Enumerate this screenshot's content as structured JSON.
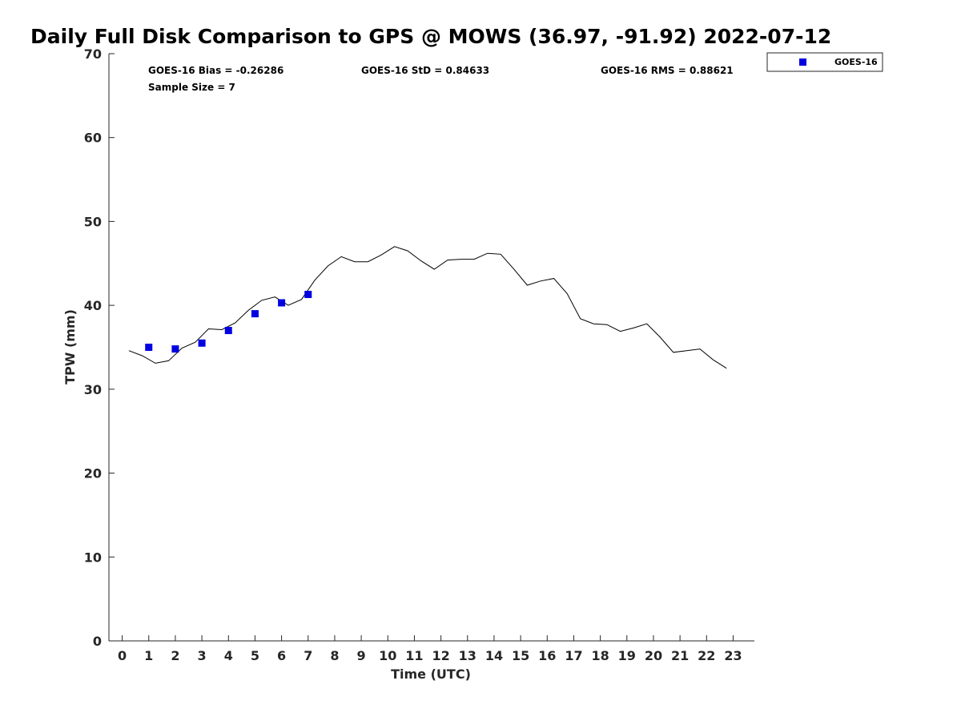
{
  "chart_data": {
    "type": "scatter",
    "title": "Daily Full Disk Comparison to GPS @ MOWS (36.97, -91.92) 2022-07-12",
    "xlabel": "Time (UTC)",
    "ylabel": "TPW (mm)",
    "xlim": [
      -0.5,
      23.8
    ],
    "ylim": [
      0,
      70
    ],
    "x_ticks": [
      "0",
      "1",
      "2",
      "3",
      "4",
      "5",
      "6",
      "7",
      "8",
      "9",
      "10",
      "11",
      "12",
      "13",
      "14",
      "15",
      "16",
      "17",
      "18",
      "19",
      "20",
      "21",
      "22",
      "23"
    ],
    "y_ticks": [
      "0",
      "10",
      "20",
      "30",
      "40",
      "50",
      "60",
      "70"
    ],
    "grid": false,
    "legend_position": "top-right, outside plot",
    "stats": {
      "bias": "GOES-16 Bias = -0.26286",
      "std": "GOES-16 StD = 0.84633",
      "rms": "GOES-16 RMS = 0.88621",
      "sample_size": "Sample Size = 7"
    },
    "series": [
      {
        "name": "GOES-16",
        "marker": "square",
        "color": "#0000e0",
        "x": [
          1,
          2,
          3,
          4,
          5,
          6,
          7
        ],
        "y": [
          35.0,
          34.8,
          35.5,
          37.0,
          39.0,
          40.3,
          41.3
        ]
      },
      {
        "type": "line",
        "color": "#000000",
        "x": [
          0.25,
          0.75,
          1.25,
          1.75,
          2.25,
          2.75,
          3.25,
          3.75,
          4.25,
          4.75,
          5.25,
          5.75,
          6.25,
          6.75,
          7.25,
          7.75,
          8.25,
          8.75,
          9.25,
          9.75,
          10.25,
          10.75,
          11.25,
          11.75,
          12.25,
          12.75,
          13.25,
          13.75,
          14.25,
          14.75,
          15.25,
          15.75,
          16.25,
          16.75,
          17.25,
          17.75,
          18.25,
          18.75,
          19.25,
          19.75,
          20.25,
          20.75,
          21.25,
          21.75,
          22.25,
          22.75
        ],
        "y": [
          34.6,
          34.0,
          33.1,
          33.4,
          34.9,
          35.6,
          37.2,
          37.1,
          37.9,
          39.4,
          40.6,
          41.0,
          40.0,
          40.7,
          43.0,
          44.7,
          45.8,
          45.2,
          45.2,
          46.0,
          47.0,
          46.5,
          45.3,
          44.3,
          45.4,
          45.5,
          45.5,
          46.2,
          46.1,
          44.3,
          42.4,
          42.9,
          43.2,
          41.4,
          38.4,
          37.8,
          37.7,
          36.9,
          37.3,
          37.8,
          36.2,
          34.4,
          34.6,
          34.8,
          33.5,
          32.5
        ]
      }
    ]
  }
}
